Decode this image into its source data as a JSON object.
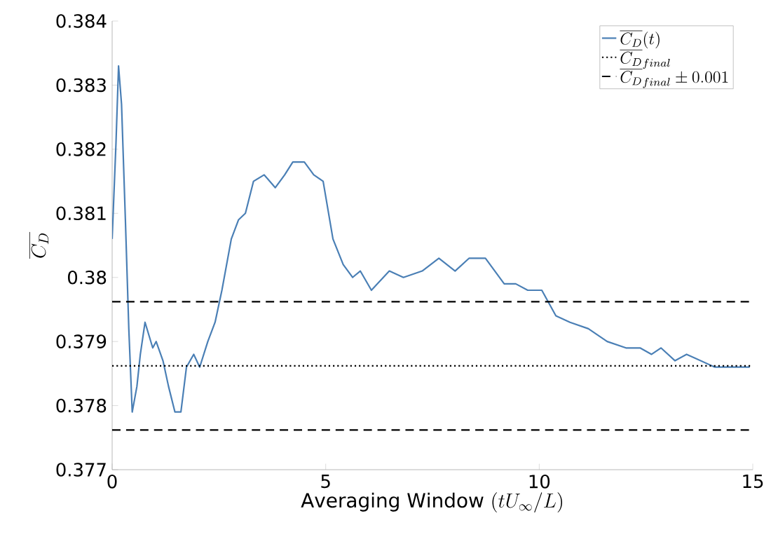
{
  "chart_data": {
    "type": "line",
    "xlabel": "\\mathrm{Averaging\\ Window}\\ (tU_\\infty/L)",
    "ylabel": "\\overline{C_D}",
    "xlim": [
      0,
      15
    ],
    "ylim": [
      0.377,
      0.384
    ],
    "xticks": [
      0,
      5,
      10,
      15
    ],
    "yticks": [
      0.377,
      0.378,
      0.379,
      0.38,
      0.381,
      0.382,
      0.383,
      0.384
    ],
    "grid": false,
    "legend": "top right",
    "series": [
      {
        "name": "\\overline{C_D}(t)",
        "color": "#4a7fb5",
        "x": [
          0,
          0.09,
          0.15,
          0.22,
          0.31,
          0.39,
          0.47,
          0.58,
          0.66,
          0.77,
          0.86,
          0.95,
          1.03,
          1.19,
          1.32,
          1.47,
          1.61,
          1.74,
          1.91,
          2.05,
          2.24,
          2.41,
          2.57,
          2.79,
          2.96,
          3.12,
          3.31,
          3.56,
          3.82,
          4.04,
          4.23,
          4.5,
          4.72,
          4.94,
          5.17,
          5.41,
          5.63,
          5.81,
          6.07,
          6.49,
          6.82,
          7.26,
          7.65,
          8.03,
          8.36,
          8.74,
          9.18,
          9.45,
          9.73,
          10.06,
          10.39,
          10.72,
          11.15,
          11.59,
          12.03,
          12.36,
          12.63,
          12.85,
          13.18,
          13.45,
          13.78,
          14.11,
          14.44,
          14.93
        ],
        "values": [
          0.3806,
          0.3821,
          0.3833,
          0.3827,
          0.3809,
          0.3792,
          0.3779,
          0.3783,
          0.3788,
          0.3793,
          0.3791,
          0.3789,
          0.379,
          0.3787,
          0.3783,
          0.3779,
          0.3779,
          0.3786,
          0.3788,
          0.3786,
          0.379,
          0.3793,
          0.3798,
          0.3806,
          0.3809,
          0.381,
          0.3815,
          0.3816,
          0.3814,
          0.3816,
          0.3818,
          0.3818,
          0.3816,
          0.3815,
          0.3806,
          0.3802,
          0.38,
          0.3801,
          0.3798,
          0.3801,
          0.38,
          0.3801,
          0.3803,
          0.3801,
          0.3803,
          0.3803,
          0.3799,
          0.3799,
          0.3798,
          0.3798,
          0.3794,
          0.3793,
          0.3792,
          0.379,
          0.3789,
          0.3789,
          0.3788,
          0.3789,
          0.3787,
          0.3788,
          0.3787,
          0.3786,
          0.3786,
          0.3786
        ]
      }
    ],
    "ref_lines": [
      {
        "axis": "y",
        "value": 0.37862,
        "label": "\\overline{C_D}_{final}",
        "color": "#000000",
        "line_style": "dotted"
      },
      {
        "axis": "y",
        "value": 0.37962,
        "label": "\\overline{C_D}_{final} \\pm 0.001",
        "color": "#000000",
        "line_style": "dashed"
      },
      {
        "axis": "y",
        "value": 0.37762,
        "color": "#000000",
        "line_style": "dashed"
      }
    ]
  }
}
